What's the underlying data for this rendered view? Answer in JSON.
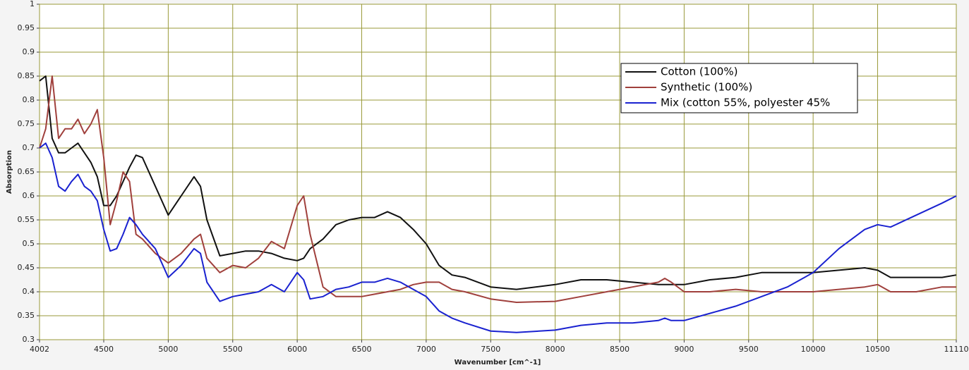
{
  "chart_data": {
    "type": "line",
    "xlabel": "Wavenumber [cm^-1]",
    "ylabel": "Absorption",
    "xlim": [
      4002,
      11110
    ],
    "ylim": [
      0.3,
      1
    ],
    "xticks": [
      4002,
      4500,
      5000,
      5500,
      6000,
      6500,
      7000,
      7500,
      8000,
      8500,
      9000,
      9500,
      10000,
      10500,
      11110
    ],
    "yticks": [
      0.3,
      0.35,
      0.4,
      0.45,
      0.5,
      0.55,
      0.6,
      0.65,
      0.7,
      0.75,
      0.8,
      0.85,
      0.9,
      0.95,
      1
    ],
    "grid": true,
    "x": [
      4002,
      4050,
      4100,
      4150,
      4200,
      4250,
      4300,
      4350,
      4400,
      4450,
      4500,
      4550,
      4600,
      4650,
      4700,
      4750,
      4800,
      4900,
      5000,
      5100,
      5200,
      5250,
      5300,
      5400,
      5500,
      5600,
      5700,
      5800,
      5900,
      6000,
      6050,
      6100,
      6200,
      6300,
      6400,
      6500,
      6600,
      6700,
      6800,
      6900,
      7000,
      7100,
      7200,
      7300,
      7500,
      7700,
      8000,
      8200,
      8400,
      8600,
      8800,
      8850,
      8900,
      9000,
      9200,
      9400,
      9600,
      9800,
      10000,
      10200,
      10400,
      10500,
      10600,
      10800,
      11000,
      11110
    ],
    "series": [
      {
        "name": "Cotton (100%)",
        "color": "#111111",
        "values": [
          0.84,
          0.85,
          0.72,
          0.69,
          0.69,
          0.7,
          0.71,
          0.69,
          0.67,
          0.64,
          0.58,
          0.58,
          0.6,
          0.63,
          0.66,
          0.685,
          0.68,
          0.62,
          0.56,
          0.6,
          0.64,
          0.62,
          0.55,
          0.475,
          0.48,
          0.485,
          0.485,
          0.48,
          0.47,
          0.465,
          0.47,
          0.49,
          0.51,
          0.54,
          0.55,
          0.555,
          0.555,
          0.567,
          0.555,
          0.53,
          0.5,
          0.455,
          0.435,
          0.43,
          0.41,
          0.405,
          0.415,
          0.425,
          0.425,
          0.42,
          0.415,
          0.415,
          0.415,
          0.415,
          0.425,
          0.43,
          0.44,
          0.44,
          0.44,
          0.445,
          0.45,
          0.445,
          0.43,
          0.43,
          0.43,
          0.435
        ]
      },
      {
        "name": "Synthetic (100%)",
        "color": "#a0403c",
        "values": [
          0.7,
          0.74,
          0.85,
          0.72,
          0.74,
          0.74,
          0.76,
          0.73,
          0.75,
          0.78,
          0.68,
          0.54,
          0.59,
          0.65,
          0.63,
          0.52,
          0.51,
          0.48,
          0.46,
          0.48,
          0.51,
          0.52,
          0.47,
          0.44,
          0.455,
          0.45,
          0.47,
          0.505,
          0.49,
          0.58,
          0.6,
          0.52,
          0.41,
          0.39,
          0.39,
          0.39,
          0.395,
          0.4,
          0.405,
          0.415,
          0.42,
          0.42,
          0.405,
          0.4,
          0.385,
          0.378,
          0.38,
          0.39,
          0.4,
          0.41,
          0.42,
          0.428,
          0.42,
          0.4,
          0.4,
          0.405,
          0.4,
          0.4,
          0.4,
          0.405,
          0.41,
          0.415,
          0.4,
          0.4,
          0.41,
          0.41
        ]
      },
      {
        "name": "Mix (cotton 55%, polyester 45%",
        "color": "#1a22d0",
        "values": [
          0.7,
          0.71,
          0.68,
          0.62,
          0.61,
          0.63,
          0.645,
          0.62,
          0.61,
          0.59,
          0.53,
          0.485,
          0.49,
          0.52,
          0.555,
          0.54,
          0.52,
          0.49,
          0.43,
          0.455,
          0.49,
          0.48,
          0.42,
          0.38,
          0.39,
          0.395,
          0.4,
          0.415,
          0.4,
          0.44,
          0.425,
          0.385,
          0.39,
          0.405,
          0.41,
          0.42,
          0.42,
          0.428,
          0.42,
          0.405,
          0.39,
          0.36,
          0.345,
          0.335,
          0.318,
          0.315,
          0.32,
          0.33,
          0.335,
          0.335,
          0.34,
          0.345,
          0.34,
          0.34,
          0.355,
          0.37,
          0.39,
          0.41,
          0.44,
          0.49,
          0.53,
          0.54,
          0.535,
          0.56,
          0.585,
          0.6
        ]
      }
    ]
  }
}
